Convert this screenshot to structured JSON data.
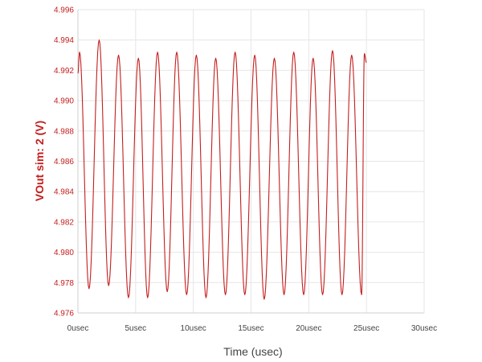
{
  "chart_data": {
    "type": "line",
    "xlabel": "Time (usec)",
    "ylabel": "VOut sim: 2 (V)",
    "xlim": [
      0,
      30
    ],
    "ylim": [
      4.976,
      4.996
    ],
    "x_ticks": [
      "0usec",
      "5usec",
      "10usec",
      "15usec",
      "20usec",
      "25usec",
      "30usec"
    ],
    "y_ticks": [
      "4.996",
      "4.994",
      "4.992",
      "4.990",
      "4.988",
      "4.986",
      "4.984",
      "4.982",
      "4.980",
      "4.978",
      "4.976"
    ],
    "grid": true,
    "colors": {
      "series": "#c41e1e",
      "y_axis_text": "#c41e1e",
      "grid": "#e6e6e6"
    },
    "series": [
      {
        "name": "",
        "x": [
          0,
          0.14,
          0.96,
          1.84,
          2.66,
          3.52,
          4.38,
          5.24,
          6.04,
          6.9,
          7.74,
          8.56,
          9.42,
          10.26,
          11.1,
          11.94,
          12.78,
          13.62,
          14.46,
          15.32,
          16.14,
          17.02,
          17.86,
          18.7,
          19.56,
          20.38,
          21.2,
          22.06,
          22.88,
          23.72,
          24.58,
          24.82,
          25.0
        ],
        "values": [
          4.9918,
          4.9932,
          4.9776,
          4.994,
          4.9778,
          4.993,
          4.977,
          4.9928,
          4.977,
          4.9932,
          4.9774,
          4.9932,
          4.9772,
          4.993,
          4.977,
          4.9928,
          4.9772,
          4.9932,
          4.9772,
          4.993,
          4.9769,
          4.9928,
          4.9772,
          4.9932,
          4.9772,
          4.9928,
          4.9772,
          4.9933,
          4.9772,
          4.993,
          4.9772,
          4.9931,
          4.9925
        ]
      }
    ]
  }
}
